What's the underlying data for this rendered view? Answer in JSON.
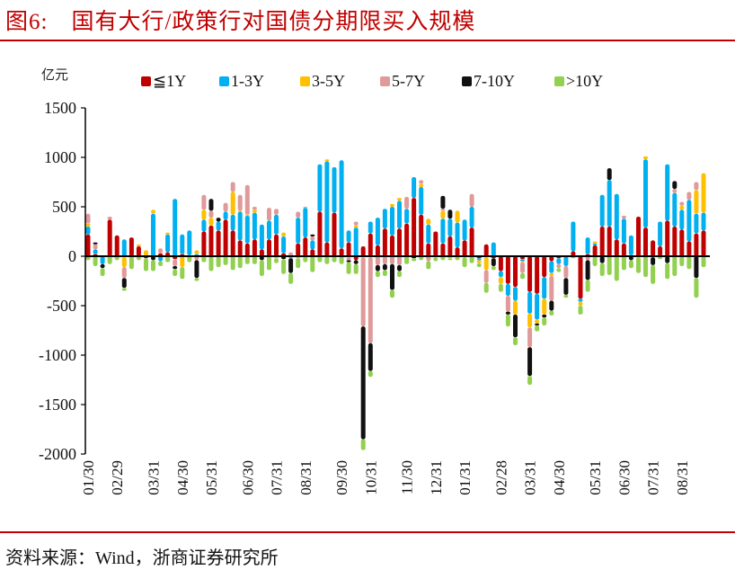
{
  "title": "图6:　国有大行/政策行对国债分期限买入规模",
  "source": "资料来源：Wind，浙商证券研究所",
  "chart_data": {
    "type": "bar",
    "stacked": true,
    "title": "国有大行/政策行对国债分期限买入规模",
    "ylabel": "亿元",
    "xlabel": "",
    "ylim": [
      -2000,
      1500
    ],
    "yticks": [
      1500,
      1000,
      500,
      0,
      -500,
      -1000,
      -1500,
      -2000
    ],
    "xtick_labels": [
      "01/30",
      "02/29",
      "03/31",
      "04/30",
      "05/31",
      "06/30",
      "07/31",
      "08/31",
      "09/30",
      "10/31",
      "11/30",
      "12/31",
      "01/31",
      "02/28",
      "03/31",
      "04/30",
      "05/31",
      "06/30",
      "07/31",
      "08/31"
    ],
    "xtick_bar_index": [
      0,
      4,
      9,
      13,
      17,
      22,
      26,
      30,
      35,
      39,
      44,
      48,
      52,
      57,
      61,
      65,
      70,
      74,
      78,
      82
    ],
    "legend_position": "top",
    "series": [
      {
        "name": "≦1Y",
        "color": "#c00000",
        "values": [
          220,
          20,
          0,
          370,
          210,
          -10,
          190,
          100,
          -20,
          0,
          30,
          40,
          -30,
          20,
          10,
          0,
          250,
          310,
          260,
          370,
          260,
          160,
          130,
          170,
          70,
          170,
          220,
          30,
          -10,
          130,
          190,
          70,
          450,
          140,
          440,
          80,
          140,
          -40,
          100,
          230,
          110,
          280,
          210,
          280,
          330,
          590,
          420,
          130,
          250,
          130,
          200,
          90,
          160,
          290,
          -20,
          120,
          -20,
          -150,
          -280,
          -310,
          -30,
          -360,
          -380,
          -210,
          -50,
          -20,
          0,
          50,
          -430,
          20,
          110,
          300,
          300,
          170,
          130,
          10,
          400,
          290,
          160,
          100,
          360,
          300,
          270,
          150,
          230,
          260
        ]
      },
      {
        "name": "1-3Y",
        "color": "#00b0f0",
        "values": [
          80,
          50,
          -80,
          0,
          0,
          170,
          0,
          0,
          0,
          430,
          -50,
          180,
          580,
          200,
          250,
          20,
          120,
          0,
          90,
          80,
          160,
          290,
          280,
          270,
          250,
          190,
          200,
          170,
          -10,
          260,
          300,
          90,
          480,
          820,
          460,
          890,
          120,
          290,
          -10,
          120,
          280,
          200,
          290,
          280,
          150,
          210,
          280,
          190,
          -10,
          250,
          180,
          250,
          210,
          210,
          -20,
          -10,
          140,
          -60,
          -120,
          -140,
          -20,
          -220,
          -260,
          -220,
          -120,
          -60,
          -100,
          300,
          -30,
          170,
          20,
          320,
          470,
          460,
          250,
          200,
          -10,
          690,
          -10,
          250,
          570,
          340,
          200,
          420,
          200,
          180
        ]
      },
      {
        "name": "3-5Y",
        "color": "#ffc000",
        "values": [
          30,
          0,
          0,
          0,
          0,
          -100,
          0,
          20,
          60,
          40,
          0,
          20,
          0,
          -110,
          0,
          40,
          100,
          80,
          0,
          0,
          230,
          10,
          10,
          30,
          0,
          0,
          -20,
          40,
          0,
          -20,
          0,
          0,
          0,
          20,
          0,
          0,
          -10,
          20,
          0,
          -10,
          0,
          0,
          30,
          30,
          0,
          0,
          30,
          60,
          0,
          80,
          -20,
          120,
          0,
          0,
          -30,
          -130,
          0,
          -70,
          0,
          -140,
          -10,
          -140,
          -40,
          -160,
          -30,
          0,
          0,
          0,
          -40,
          0,
          20,
          0,
          0,
          0,
          0,
          0,
          0,
          30,
          0,
          0,
          0,
          0,
          40,
          0,
          240,
          400
        ]
      },
      {
        "name": "5-7Y",
        "color": "#e09a9a",
        "values": [
          100,
          50,
          0,
          30,
          0,
          -110,
          0,
          0,
          0,
          0,
          50,
          0,
          -70,
          0,
          0,
          -40,
          150,
          70,
          0,
          90,
          100,
          160,
          300,
          30,
          0,
          130,
          60,
          0,
          40,
          60,
          10,
          40,
          0,
          0,
          0,
          0,
          -30,
          40,
          -700,
          -870,
          -90,
          -80,
          -80,
          -90,
          120,
          0,
          40,
          -50,
          0,
          20,
          0,
          0,
          0,
          130,
          0,
          -130,
          0,
          0,
          -160,
          0,
          -110,
          -200,
          0,
          0,
          -250,
          -40,
          -120,
          0,
          0,
          -40,
          0,
          0,
          0,
          0,
          30,
          0,
          0,
          0,
          0,
          0,
          0,
          40,
          40,
          80,
          80,
          0
        ]
      },
      {
        "name": "7-10Y",
        "color": "#111111",
        "values": [
          0,
          20,
          -40,
          0,
          0,
          -100,
          0,
          0,
          0,
          -40,
          0,
          0,
          -30,
          0,
          0,
          -180,
          0,
          120,
          40,
          0,
          0,
          0,
          0,
          0,
          -40,
          0,
          0,
          -30,
          -150,
          0,
          0,
          20,
          0,
          0,
          0,
          0,
          -20,
          -40,
          -1140,
          -280,
          -60,
          -60,
          -260,
          -60,
          0,
          -20,
          0,
          0,
          0,
          130,
          90,
          0,
          -10,
          0,
          0,
          0,
          -80,
          0,
          -30,
          -230,
          0,
          -290,
          -20,
          -30,
          -100,
          0,
          -170,
          0,
          0,
          -200,
          0,
          -70,
          120,
          0,
          0,
          -40,
          0,
          0,
          -80,
          0,
          -70,
          80,
          0,
          0,
          -220,
          0
        ]
      },
      {
        "name": ">10Y",
        "color": "#92d050",
        "values": [
          -40,
          -100,
          -80,
          -80,
          -40,
          -30,
          -130,
          -40,
          -130,
          -110,
          -50,
          -60,
          -70,
          -120,
          -60,
          -30,
          -60,
          -150,
          -110,
          -90,
          -140,
          -120,
          -80,
          -80,
          -160,
          -140,
          -50,
          -150,
          -110,
          -100,
          -60,
          -160,
          -60,
          -80,
          -60,
          -80,
          -120,
          -100,
          -110,
          -60,
          -60,
          -60,
          -80,
          -60,
          -80,
          -30,
          -40,
          -80,
          -40,
          -40,
          -20,
          -40,
          -100,
          -70,
          -40,
          -100,
          -40,
          -80,
          -120,
          -80,
          -60,
          -90,
          -60,
          -80,
          -50,
          -40,
          -30,
          -20,
          -90,
          -120,
          -100,
          -130,
          -190,
          -250,
          -140,
          -80,
          -160,
          -210,
          -190,
          -30,
          -160,
          -200,
          -100,
          -130,
          -200,
          -110
        ]
      }
    ]
  }
}
